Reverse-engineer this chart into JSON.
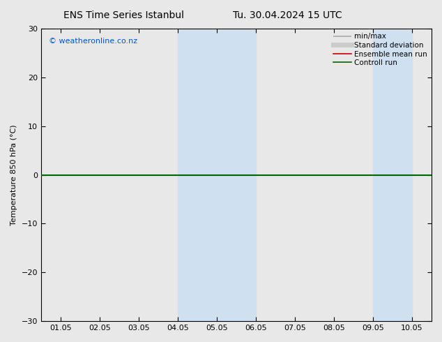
{
  "title_left": "ENS Time Series Istanbul",
  "title_right": "Tu. 30.04.2024 15 UTC",
  "ylabel": "Temperature 850 hPa (°C)",
  "ylim": [
    -30,
    30
  ],
  "yticks": [
    -30,
    -20,
    -10,
    0,
    10,
    20,
    30
  ],
  "xtick_positions": [
    0,
    1,
    2,
    3,
    4,
    5,
    6,
    7,
    8,
    9
  ],
  "xtick_labels": [
    "01.05",
    "02.05",
    "03.05",
    "04.05",
    "05.05",
    "06.05",
    "07.05",
    "08.05",
    "09.05",
    "10.05"
  ],
  "xlim": [
    -0.5,
    9.5
  ],
  "shaded_bands": [
    {
      "x_start": 3,
      "x_end": 4,
      "color": "#cfe0f0"
    },
    {
      "x_start": 4,
      "x_end": 5,
      "color": "#cfe0f0"
    },
    {
      "x_start": 8,
      "x_end": 9,
      "color": "#cfe0f0"
    }
  ],
  "hline_y": 0,
  "hline_color": "#006600",
  "hline_lw": 1.5,
  "copyright_text": "© weatheronline.co.nz",
  "copyright_color": "#0055cc",
  "legend_items": [
    {
      "label": "min/max",
      "color": "#aaaaaa",
      "lw": 1.2
    },
    {
      "label": "Standard deviation",
      "color": "#cccccc",
      "lw": 5
    },
    {
      "label": "Ensemble mean run",
      "color": "#cc0000",
      "lw": 1.2
    },
    {
      "label": "Controll run",
      "color": "#006600",
      "lw": 1.2
    }
  ],
  "bg_color": "#e8e8e8",
  "plot_bg_color": "#e8e8e8",
  "title_fontsize": 10,
  "axis_label_fontsize": 8,
  "tick_fontsize": 8,
  "legend_fontsize": 7.5,
  "copyright_fontsize": 8
}
